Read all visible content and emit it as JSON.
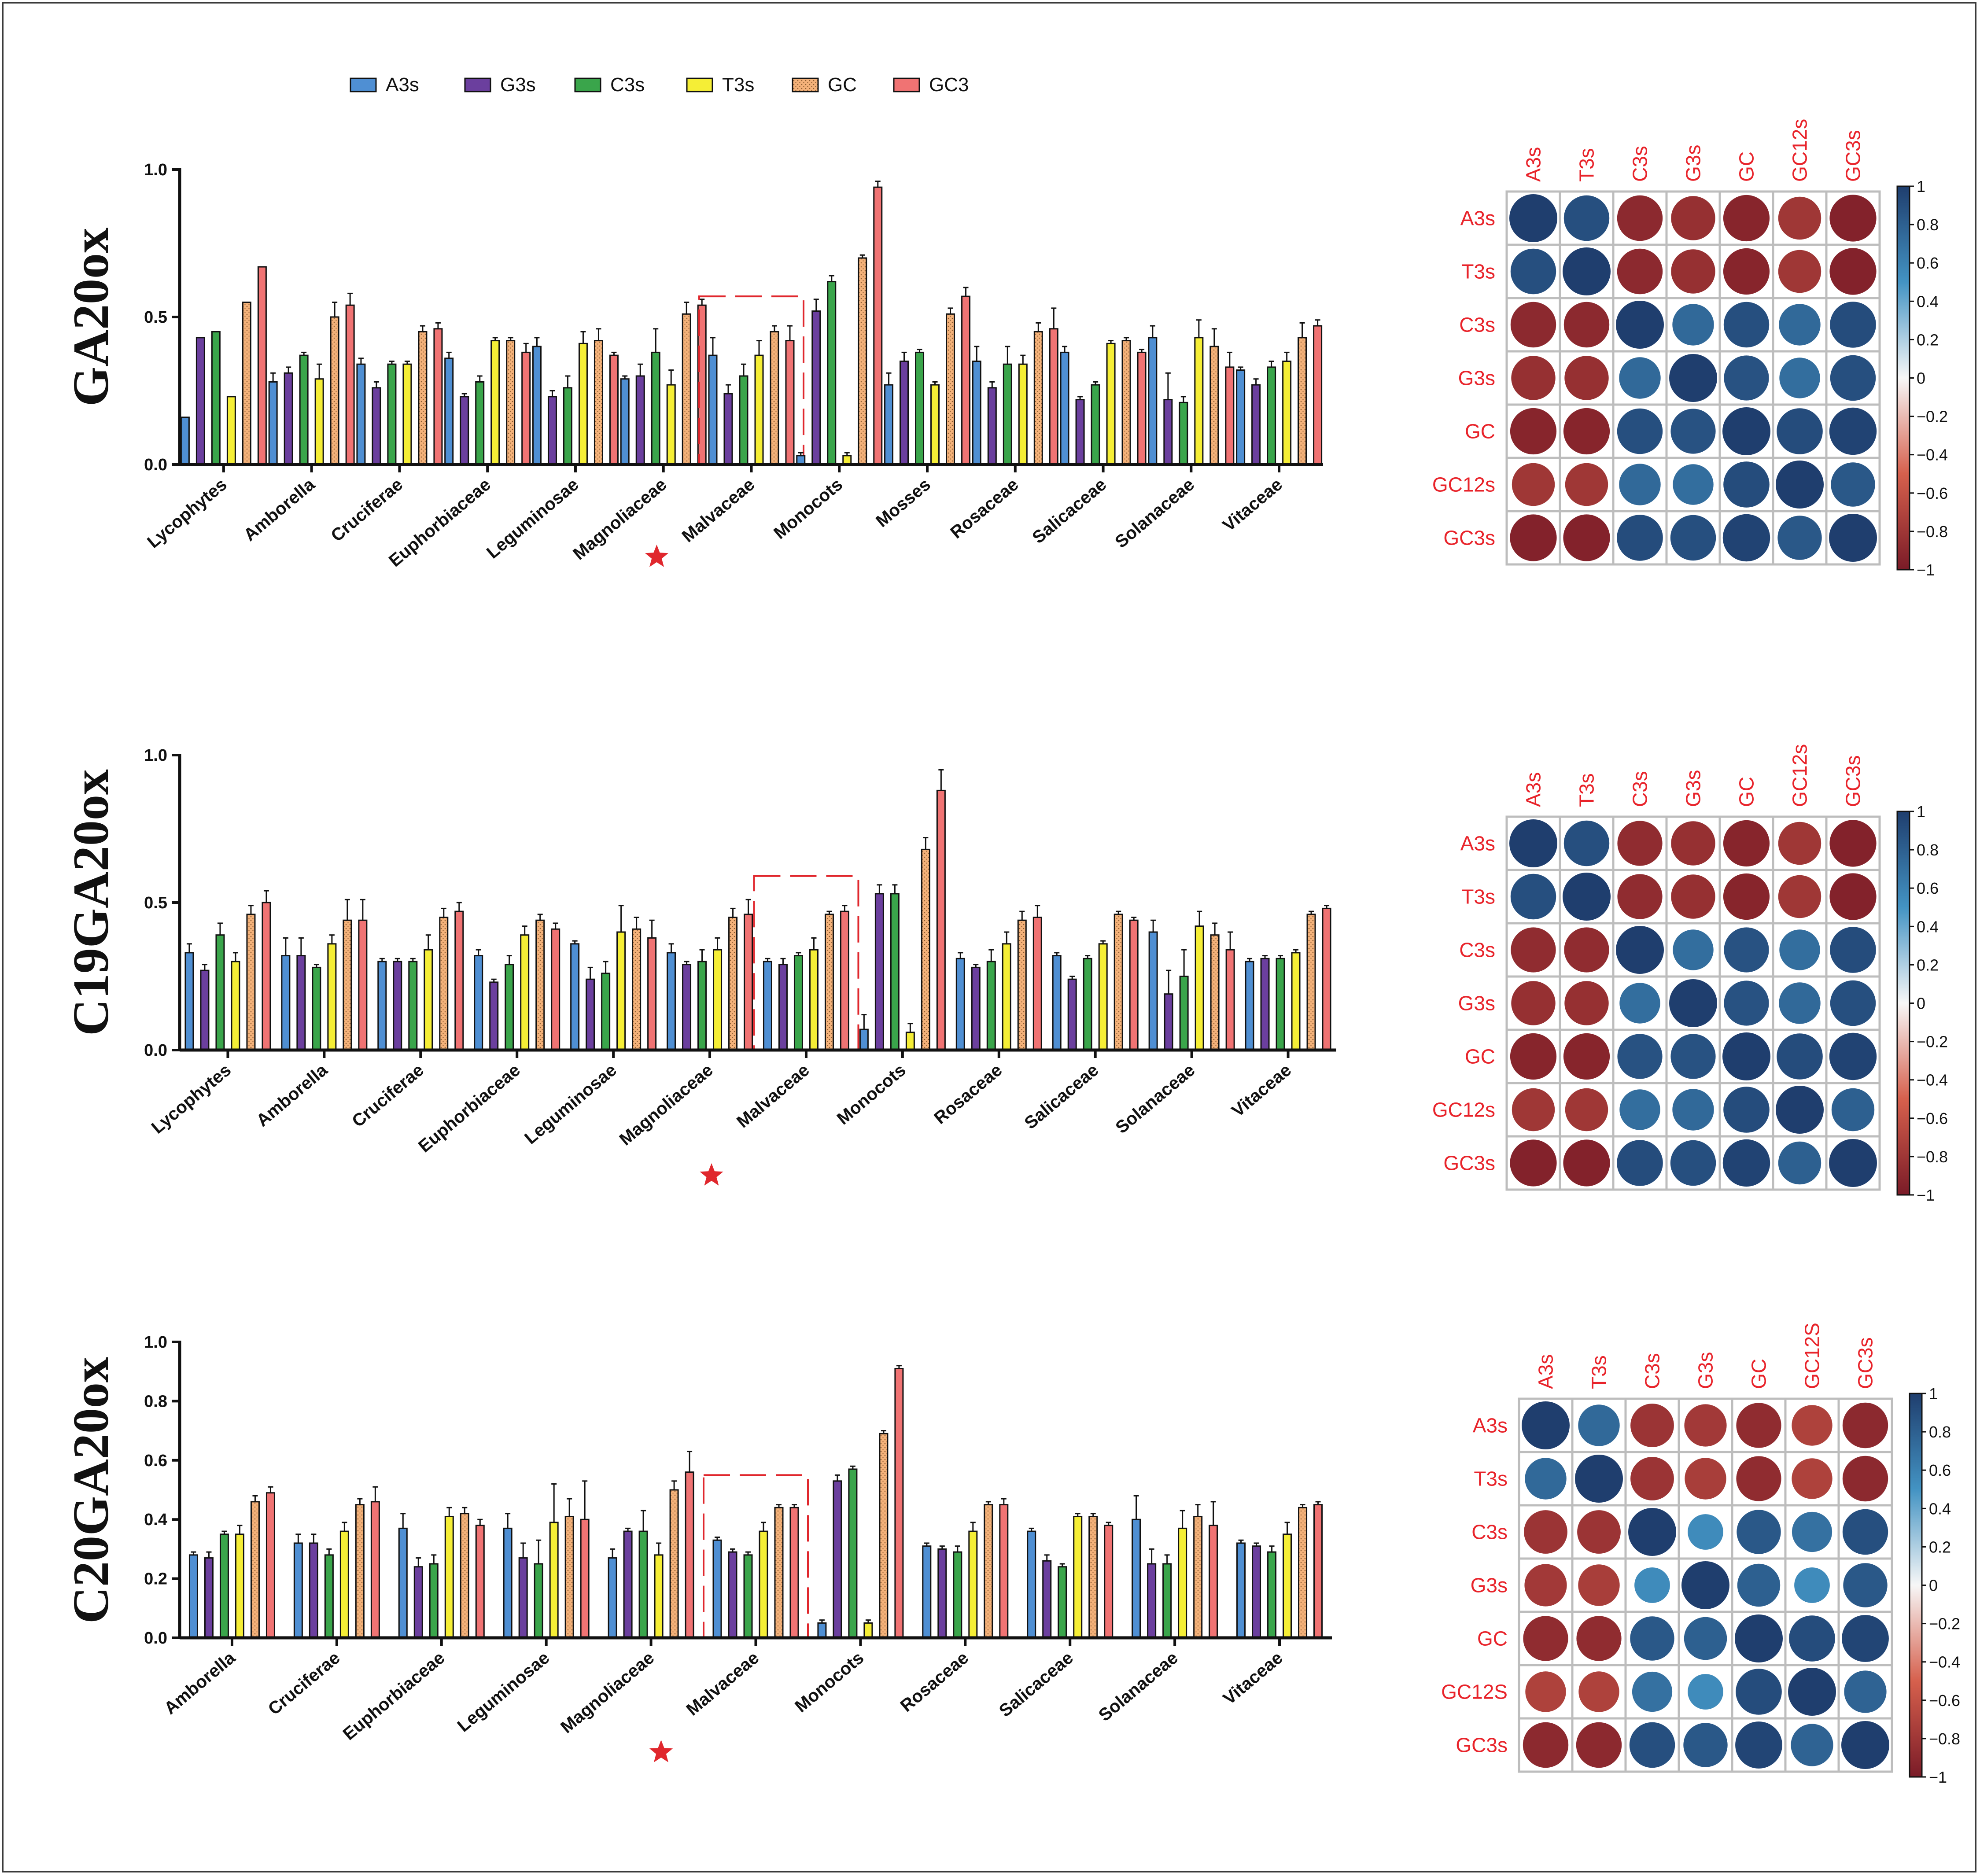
{
  "colors": {
    "series": [
      "#4f8fd3",
      "#6b3f9e",
      "#3aa54b",
      "#f5ee36",
      "#f4b27a",
      "#f07373"
    ],
    "dashed_box": "#e0272d",
    "star": "#e0272d",
    "corr_label": "#e8232a",
    "corr_pos": "#1f3e6e",
    "corr_neg": "#7a1b27",
    "corr_zero": "#f7f7f7"
  },
  "legend": {
    "items": [
      {
        "label": "A3s",
        "icon": "swatch-blue"
      },
      {
        "label": "G3s",
        "icon": "swatch-purple"
      },
      {
        "label": "C3s",
        "icon": "swatch-green"
      },
      {
        "label": "T3s",
        "icon": "swatch-yellow"
      },
      {
        "label": "GC",
        "icon": "swatch-dotted-orange"
      },
      {
        "label": "GC3",
        "icon": "swatch-red"
      }
    ]
  },
  "panels": [
    {
      "title": "GA20ox"
    },
    {
      "title": "C19GA20ox"
    },
    {
      "title": "C20GA20ox"
    }
  ],
  "chart_data": [
    {
      "type": "bar",
      "title": "GA20ox",
      "ylim": [
        0,
        1.0
      ],
      "yticks": [
        "0.0",
        "0.5",
        "1.0"
      ],
      "highlight": "Malvaceae",
      "star_icon": "red-star-icon",
      "categories": [
        "Lycophytes",
        "Amborella",
        "Cruciferae",
        "Euphorbiaceae",
        "Leguminosae",
        "Magnoliaceae",
        "Malvaceae",
        "Monocots",
        "Mosses",
        "Rosaceae",
        "Salicaceae",
        "Solanaceae",
        "Vitaceae"
      ],
      "series": [
        {
          "name": "A3s",
          "values": [
            0.16,
            0.28,
            0.34,
            0.36,
            0.4,
            0.29,
            0.37,
            0.03,
            0.27,
            0.35,
            0.38,
            0.43,
            0.32
          ]
        },
        {
          "name": "G3s",
          "values": [
            0.43,
            0.31,
            0.26,
            0.23,
            0.23,
            0.3,
            0.24,
            0.52,
            0.35,
            0.26,
            0.22,
            0.22,
            0.27
          ]
        },
        {
          "name": "C3s",
          "values": [
            0.45,
            0.37,
            0.34,
            0.28,
            0.26,
            0.38,
            0.3,
            0.62,
            0.38,
            0.34,
            0.27,
            0.21,
            0.33
          ]
        },
        {
          "name": "T3s",
          "values": [
            0.23,
            0.29,
            0.34,
            0.42,
            0.41,
            0.27,
            0.37,
            0.03,
            0.27,
            0.34,
            0.41,
            0.43,
            0.35
          ]
        },
        {
          "name": "GC",
          "values": [
            0.55,
            0.5,
            0.45,
            0.42,
            0.42,
            0.51,
            0.45,
            0.7,
            0.51,
            0.45,
            0.42,
            0.4,
            0.43
          ]
        },
        {
          "name": "GC3",
          "values": [
            0.67,
            0.54,
            0.46,
            0.38,
            0.37,
            0.54,
            0.42,
            0.94,
            0.57,
            0.46,
            0.38,
            0.33,
            0.47
          ]
        }
      ],
      "errors": [
        [
          0.0,
          0.03,
          0.02,
          0.02,
          0.03,
          0.01,
          0.06,
          0.01,
          0.04,
          0.05,
          0.02,
          0.04,
          0.01
        ],
        [
          0.0,
          0.02,
          0.02,
          0.01,
          0.02,
          0.04,
          0.03,
          0.04,
          0.03,
          0.02,
          0.01,
          0.09,
          0.02
        ],
        [
          0.0,
          0.01,
          0.01,
          0.02,
          0.04,
          0.08,
          0.04,
          0.02,
          0.01,
          0.06,
          0.01,
          0.02,
          0.02
        ],
        [
          0.0,
          0.05,
          0.01,
          0.01,
          0.04,
          0.05,
          0.05,
          0.01,
          0.01,
          0.03,
          0.01,
          0.06,
          0.03
        ],
        [
          0.0,
          0.05,
          0.02,
          0.01,
          0.04,
          0.04,
          0.02,
          0.01,
          0.02,
          0.03,
          0.01,
          0.06,
          0.05
        ],
        [
          0.0,
          0.04,
          0.02,
          0.03,
          0.01,
          0.02,
          0.05,
          0.02,
          0.03,
          0.07,
          0.01,
          0.05,
          0.02
        ]
      ]
    },
    {
      "type": "bar",
      "title": "C19GA20ox",
      "ylim": [
        0,
        1.0
      ],
      "yticks": [
        "0.0",
        "0.5",
        "1.0"
      ],
      "highlight": "Malvaceae",
      "star_icon": "red-star-icon",
      "categories": [
        "Lycophytes",
        "Amborella",
        "Cruciferae",
        "Euphorbiaceae",
        "Leguminosae",
        "Magnoliaceae",
        "Malvaceae",
        "Monocots",
        "Rosaceae",
        "Salicaceae",
        "Solanaceae",
        "Vitaceae"
      ],
      "series": [
        {
          "name": "A3s",
          "values": [
            0.33,
            0.32,
            0.3,
            0.32,
            0.36,
            0.33,
            0.3,
            0.07,
            0.31,
            0.32,
            0.4,
            0.3
          ]
        },
        {
          "name": "G3s",
          "values": [
            0.27,
            0.32,
            0.3,
            0.23,
            0.24,
            0.29,
            0.29,
            0.53,
            0.28,
            0.24,
            0.19,
            0.31
          ]
        },
        {
          "name": "C3s",
          "values": [
            0.39,
            0.28,
            0.3,
            0.29,
            0.26,
            0.3,
            0.32,
            0.53,
            0.3,
            0.31,
            0.25,
            0.31
          ]
        },
        {
          "name": "T3s",
          "values": [
            0.3,
            0.36,
            0.34,
            0.39,
            0.4,
            0.34,
            0.34,
            0.06,
            0.36,
            0.36,
            0.42,
            0.33
          ]
        },
        {
          "name": "GC",
          "values": [
            0.46,
            0.44,
            0.45,
            0.44,
            0.41,
            0.45,
            0.46,
            0.68,
            0.44,
            0.46,
            0.39,
            0.46
          ]
        },
        {
          "name": "GC3",
          "values": [
            0.5,
            0.44,
            0.47,
            0.41,
            0.38,
            0.46,
            0.47,
            0.88,
            0.45,
            0.44,
            0.34,
            0.48
          ]
        }
      ],
      "errors": [
        [
          0.03,
          0.06,
          0.01,
          0.02,
          0.01,
          0.03,
          0.01,
          0.05,
          0.02,
          0.01,
          0.04,
          0.01
        ],
        [
          0.02,
          0.06,
          0.01,
          0.01,
          0.04,
          0.01,
          0.02,
          0.03,
          0.01,
          0.01,
          0.08,
          0.01
        ],
        [
          0.04,
          0.01,
          0.01,
          0.03,
          0.04,
          0.04,
          0.01,
          0.03,
          0.04,
          0.01,
          0.09,
          0.01
        ],
        [
          0.03,
          0.03,
          0.05,
          0.03,
          0.09,
          0.04,
          0.04,
          0.03,
          0.04,
          0.01,
          0.05,
          0.01
        ],
        [
          0.03,
          0.07,
          0.03,
          0.02,
          0.04,
          0.03,
          0.01,
          0.04,
          0.03,
          0.01,
          0.04,
          0.01
        ],
        [
          0.04,
          0.07,
          0.03,
          0.02,
          0.06,
          0.05,
          0.02,
          0.07,
          0.04,
          0.01,
          0.06,
          0.01
        ]
      ]
    },
    {
      "type": "bar",
      "title": "C20GA20ox",
      "ylim": [
        0,
        1.0
      ],
      "yticks": [
        "0.0",
        "0.2",
        "0.4",
        "0.6",
        "0.8",
        "1.0"
      ],
      "highlight": "Malvaceae",
      "star_icon": "red-star-icon",
      "categories": [
        "Amborella",
        "Cruciferae",
        "Euphorbiaceae",
        "Leguminosae",
        "Magnoliaceae",
        "Malvaceae",
        "Monocots",
        "Rosaceae",
        "Salicaceae",
        "Solanaceae",
        "Vitaceae"
      ],
      "series": [
        {
          "name": "A3s",
          "values": [
            0.28,
            0.32,
            0.37,
            0.37,
            0.27,
            0.33,
            0.05,
            0.31,
            0.36,
            0.4,
            0.32
          ]
        },
        {
          "name": "G3s",
          "values": [
            0.27,
            0.32,
            0.24,
            0.27,
            0.36,
            0.29,
            0.53,
            0.3,
            0.26,
            0.25,
            0.31
          ]
        },
        {
          "name": "C3s",
          "values": [
            0.35,
            0.28,
            0.25,
            0.25,
            0.36,
            0.28,
            0.57,
            0.29,
            0.24,
            0.25,
            0.29
          ]
        },
        {
          "name": "T3s",
          "values": [
            0.35,
            0.36,
            0.41,
            0.39,
            0.28,
            0.36,
            0.05,
            0.36,
            0.41,
            0.37,
            0.35
          ]
        },
        {
          "name": "GC",
          "values": [
            0.46,
            0.45,
            0.42,
            0.41,
            0.5,
            0.44,
            0.69,
            0.45,
            0.41,
            0.41,
            0.44
          ]
        },
        {
          "name": "GC3",
          "values": [
            0.49,
            0.46,
            0.38,
            0.4,
            0.56,
            0.44,
            0.91,
            0.45,
            0.38,
            0.38,
            0.45
          ]
        }
      ],
      "errors": [
        [
          0.01,
          0.03,
          0.05,
          0.05,
          0.03,
          0.01,
          0.01,
          0.01,
          0.01,
          0.08,
          0.01
        ],
        [
          0.02,
          0.03,
          0.03,
          0.05,
          0.01,
          0.01,
          0.02,
          0.01,
          0.02,
          0.05,
          0.01
        ],
        [
          0.01,
          0.02,
          0.03,
          0.08,
          0.07,
          0.01,
          0.01,
          0.02,
          0.01,
          0.03,
          0.02
        ],
        [
          0.03,
          0.03,
          0.03,
          0.13,
          0.04,
          0.03,
          0.01,
          0.03,
          0.01,
          0.06,
          0.04
        ],
        [
          0.02,
          0.02,
          0.02,
          0.06,
          0.03,
          0.01,
          0.01,
          0.01,
          0.01,
          0.04,
          0.01
        ],
        [
          0.02,
          0.05,
          0.02,
          0.13,
          0.07,
          0.01,
          0.01,
          0.02,
          0.01,
          0.08,
          0.01
        ]
      ]
    },
    {
      "type": "heatmap",
      "subtype": "correlation",
      "rows": [
        "A3s",
        "T3s",
        "C3s",
        "G3s",
        "GC",
        "GC12s",
        "GC3s"
      ],
      "cols": [
        "A3s",
        "T3s",
        "C3s",
        "G3s",
        "GC",
        "GC12s",
        "GC3s"
      ],
      "values": [
        [
          1.0,
          0.9,
          -0.9,
          -0.85,
          -0.93,
          -0.8,
          -0.95
        ],
        [
          0.9,
          1.0,
          -0.9,
          -0.85,
          -0.93,
          -0.8,
          -0.95
        ],
        [
          -0.9,
          -0.9,
          1.0,
          0.75,
          0.9,
          0.75,
          0.92
        ],
        [
          -0.85,
          -0.85,
          0.75,
          1.0,
          0.88,
          0.72,
          0.9
        ],
        [
          -0.93,
          -0.93,
          0.9,
          0.88,
          1.0,
          0.92,
          0.97
        ],
        [
          -0.8,
          -0.8,
          0.75,
          0.72,
          0.92,
          1.0,
          0.85
        ],
        [
          -0.95,
          -0.95,
          0.92,
          0.9,
          0.97,
          0.85,
          1.0
        ]
      ],
      "colorbar": {
        "range": [
          -1,
          1
        ],
        "ticks": [
          "1",
          "0.8",
          "0.6",
          "0.4",
          "0.2",
          "0",
          "−0.2",
          "−0.4",
          "−0.6",
          "−0.8",
          "−1"
        ]
      }
    },
    {
      "type": "heatmap",
      "subtype": "correlation",
      "rows": [
        "A3s",
        "T3s",
        "C3s",
        "G3s",
        "GC",
        "GC12s",
        "GC3s"
      ],
      "cols": [
        "A3s",
        "T3s",
        "C3s",
        "G3s",
        "GC",
        "GC12s",
        "GC3s"
      ],
      "values": [
        [
          1.0,
          0.9,
          -0.88,
          -0.85,
          -0.93,
          -0.8,
          -0.95
        ],
        [
          0.9,
          1.0,
          -0.88,
          -0.85,
          -0.93,
          -0.8,
          -0.95
        ],
        [
          -0.88,
          -0.88,
          1.0,
          0.72,
          0.88,
          0.72,
          0.92
        ],
        [
          -0.85,
          -0.85,
          0.72,
          1.0,
          0.88,
          0.75,
          0.9
        ],
        [
          -0.93,
          -0.93,
          0.88,
          0.88,
          1.0,
          0.92,
          0.97
        ],
        [
          -0.8,
          -0.8,
          0.72,
          0.75,
          0.92,
          1.0,
          0.8
        ],
        [
          -0.95,
          -0.95,
          0.92,
          0.9,
          0.97,
          0.8,
          1.0
        ]
      ],
      "colorbar": {
        "range": [
          -1,
          1
        ],
        "ticks": [
          "1",
          "0.8",
          "0.6",
          "0.4",
          "0.2",
          "0",
          "−0.2",
          "−0.4",
          "−0.6",
          "−0.8",
          "−1"
        ]
      }
    },
    {
      "type": "heatmap",
      "subtype": "correlation",
      "rows": [
        "A3s",
        "T3s",
        "C3s",
        "G3s",
        "GC",
        "GC12S",
        "GC3s"
      ],
      "cols": [
        "A3s",
        "T3s",
        "C3s",
        "G3s",
        "GC",
        "GC12S",
        "GC3s"
      ],
      "values": [
        [
          1.0,
          0.75,
          -0.82,
          -0.78,
          -0.88,
          -0.72,
          -0.9
        ],
        [
          0.75,
          1.0,
          -0.82,
          -0.75,
          -0.88,
          -0.72,
          -0.9
        ],
        [
          -0.82,
          -0.82,
          1.0,
          0.55,
          0.85,
          0.7,
          0.9
        ],
        [
          -0.78,
          -0.75,
          0.55,
          1.0,
          0.8,
          0.55,
          0.85
        ],
        [
          -0.88,
          -0.88,
          0.85,
          0.8,
          1.0,
          0.92,
          0.96
        ],
        [
          -0.72,
          -0.72,
          0.7,
          0.55,
          0.92,
          1.0,
          0.78
        ],
        [
          -0.9,
          -0.9,
          0.9,
          0.85,
          0.96,
          0.78,
          1.0
        ]
      ],
      "colorbar": {
        "range": [
          -1,
          1
        ],
        "ticks": [
          "1",
          "0.8",
          "0.6",
          "0.4",
          "0.2",
          "0",
          "−0.2",
          "−0.4",
          "−0.6",
          "−0.8",
          "−1"
        ]
      }
    }
  ]
}
